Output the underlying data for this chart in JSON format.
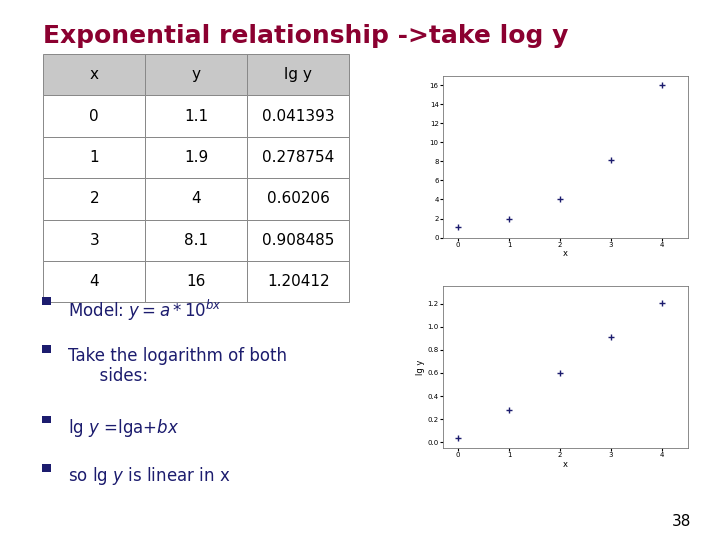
{
  "title": "Exponential relationship ->take log y",
  "title_color": "#8B0030",
  "title_fontsize": 18,
  "bg_color": "#FFFFFF",
  "table_x": [
    "0",
    "1",
    "2",
    "3",
    "4"
  ],
  "table_y": [
    "1.1",
    "1.9",
    "4",
    "8.1",
    "16"
  ],
  "table_lgy": [
    "0.041393",
    "0.278754",
    "0.60206",
    "0.908485",
    "1.20412"
  ],
  "bullet_color": "#1C1C6E",
  "page_number": "38",
  "scatter1_x": [
    0,
    1,
    2,
    3,
    4
  ],
  "scatter1_y": [
    1.1,
    1.9,
    4,
    8.1,
    16
  ],
  "scatter2_x": [
    0,
    1,
    2,
    3,
    4
  ],
  "scatter2_y": [
    0.041393,
    0.278754,
    0.60206,
    0.908485,
    1.20412
  ],
  "scatter_color": "#1C1C6E",
  "table_header_bg": "#C8C8C8",
  "table_line_color": "#888888"
}
